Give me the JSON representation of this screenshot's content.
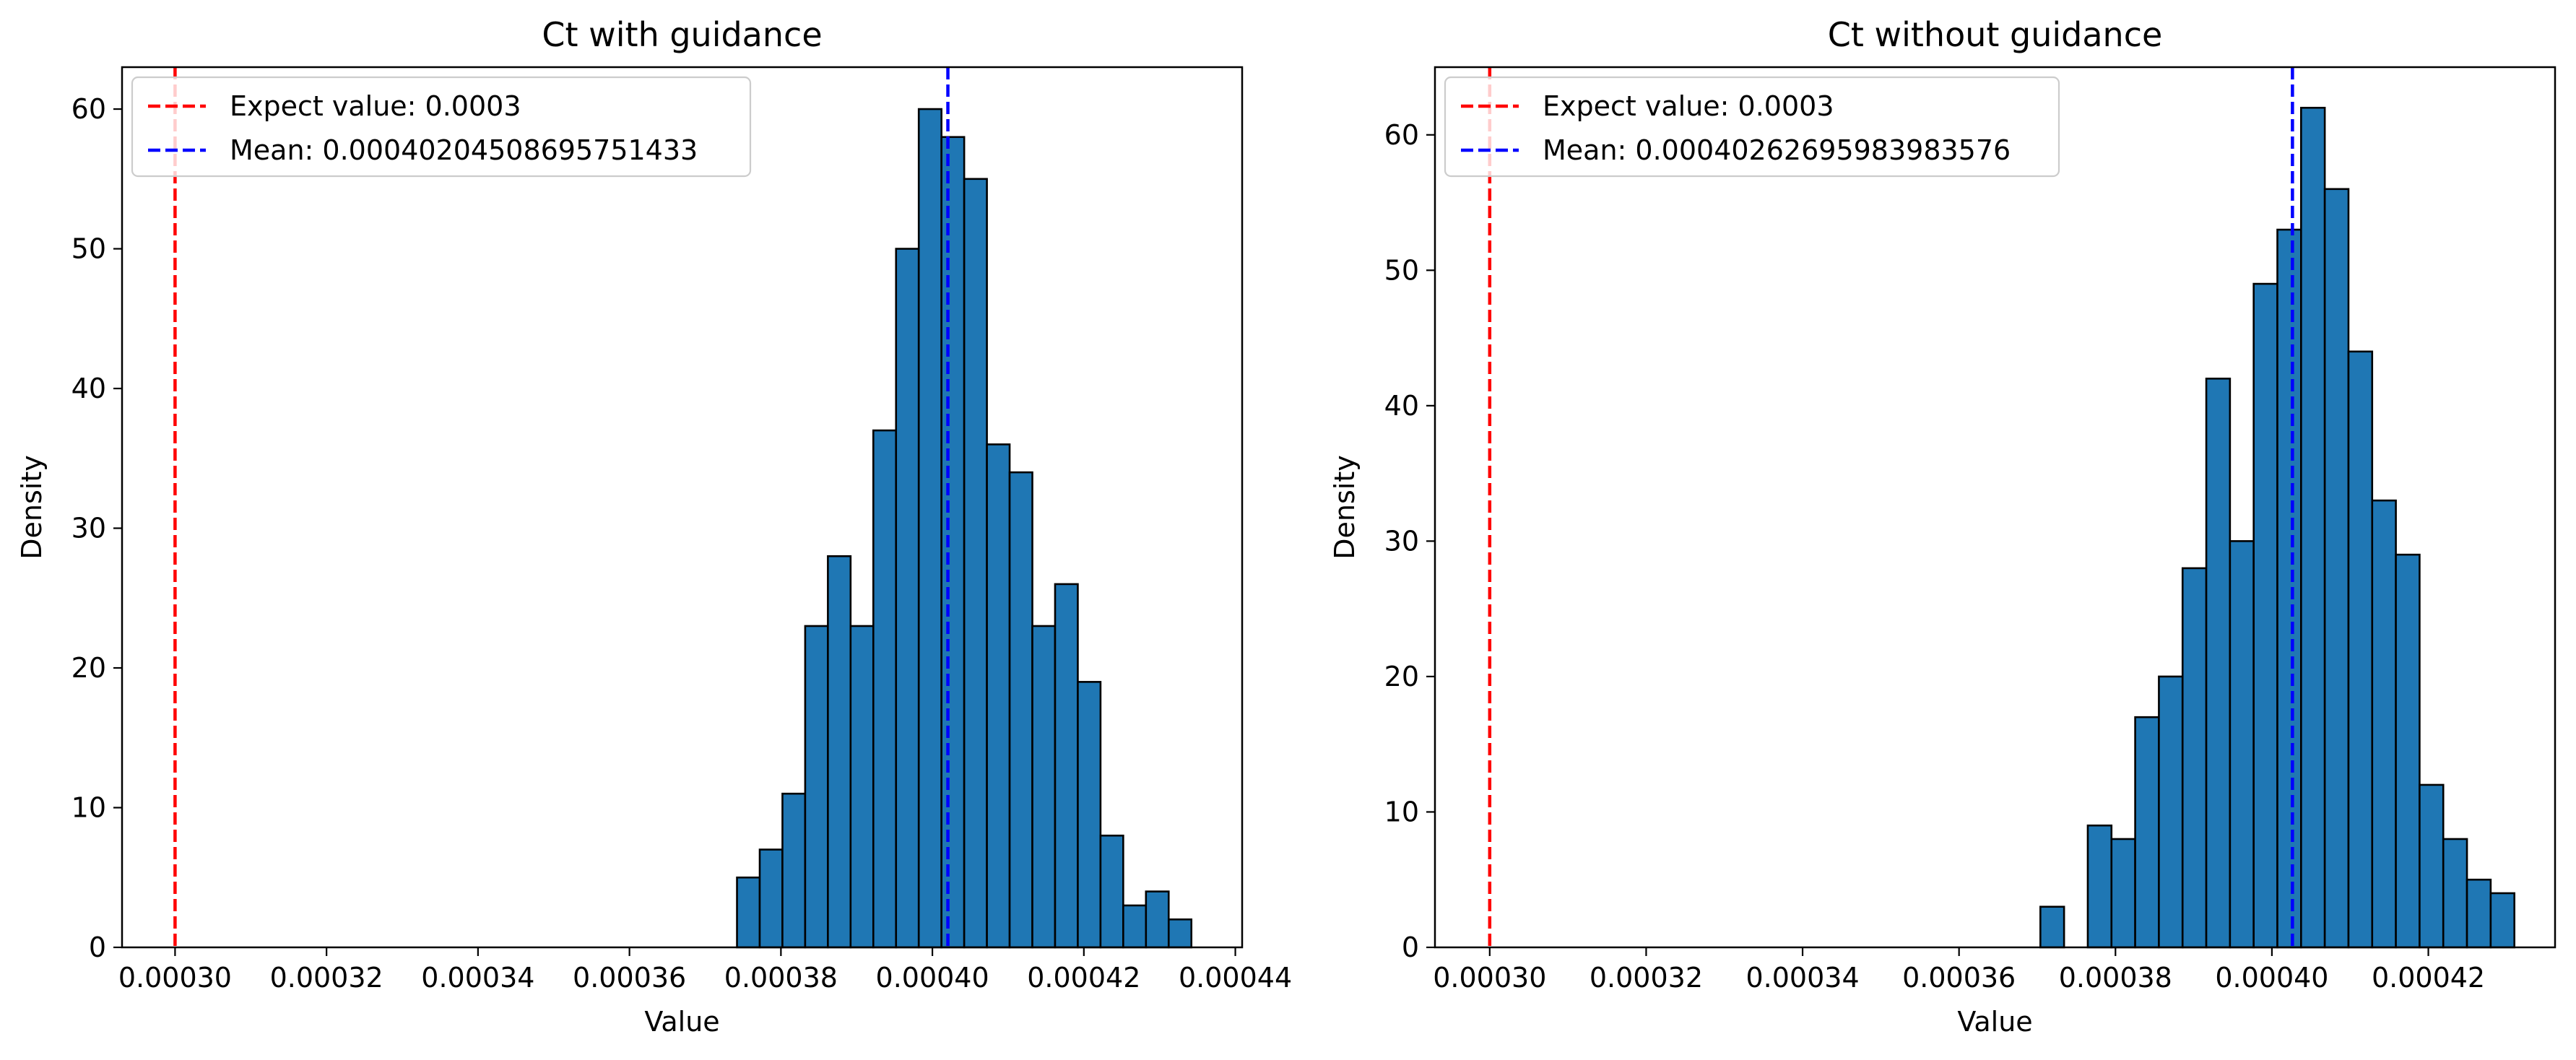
{
  "chart_data": [
    {
      "type": "bar",
      "title": "Ct with guidance",
      "xlabel": "Value",
      "ylabel": "Density",
      "xlim": [
        0.000293,
        0.0004409
      ],
      "ylim": [
        0,
        63
      ],
      "xticks": [
        "0.00030",
        "0.00032",
        "0.00034",
        "0.00036",
        "0.00038",
        "0.00040",
        "0.00042",
        "0.00044"
      ],
      "xtick_values": [
        0.0003,
        0.00032,
        0.00034,
        0.00036,
        0.00038,
        0.0004,
        0.00042,
        0.00044
      ],
      "yticks": [
        "0",
        "10",
        "20",
        "30",
        "40",
        "50",
        "60"
      ],
      "ytick_values": [
        0,
        10,
        20,
        30,
        40,
        50,
        60
      ],
      "bin_start": 0.0003742,
      "bin_width": 3e-06,
      "values": [
        5,
        7,
        11,
        23,
        28,
        23,
        37,
        50,
        60,
        58,
        55,
        36,
        34,
        23,
        26,
        19,
        8,
        3,
        4,
        2
      ],
      "bar_color": "#1f77b4",
      "vlines": [
        {
          "label": "Expect value: 0.0003",
          "x": 0.0003,
          "color": "#ff0000"
        },
        {
          "label": "Mean: 0.00040204508695751433",
          "x": 0.00040204508695751434,
          "color": "#0000ff"
        }
      ],
      "legend_position": "upper-left",
      "grid": false
    },
    {
      "type": "bar",
      "title": "Ct without guidance",
      "xlabel": "Value",
      "ylabel": "Density",
      "xlim": [
        0.000293,
        0.0004362
      ],
      "ylim": [
        0,
        65
      ],
      "xticks": [
        "0.00030",
        "0.00032",
        "0.00034",
        "0.00036",
        "0.00038",
        "0.00040",
        "0.00042"
      ],
      "xtick_values": [
        0.0003,
        0.00032,
        0.00034,
        0.00036,
        0.00038,
        0.0004,
        0.00042
      ],
      "yticks": [
        "0",
        "10",
        "20",
        "30",
        "40",
        "50",
        "60"
      ],
      "ytick_values": [
        0,
        10,
        20,
        30,
        40,
        50,
        60
      ],
      "bin_start": 0.0003704,
      "bin_width": 3.03e-06,
      "values": [
        3,
        0,
        9,
        8,
        17,
        20,
        28,
        42,
        30,
        49,
        53,
        62,
        56,
        44,
        33,
        29,
        12,
        8,
        5,
        4
      ],
      "bar_color": "#1f77b4",
      "vlines": [
        {
          "label": "Expect value: 0.0003",
          "x": 0.0003,
          "color": "#ff0000"
        },
        {
          "label": "Mean: 0.00040262695983983576",
          "x": 0.00040262695983983576,
          "color": "#0000ff"
        }
      ],
      "legend_position": "upper-left",
      "grid": false
    }
  ]
}
